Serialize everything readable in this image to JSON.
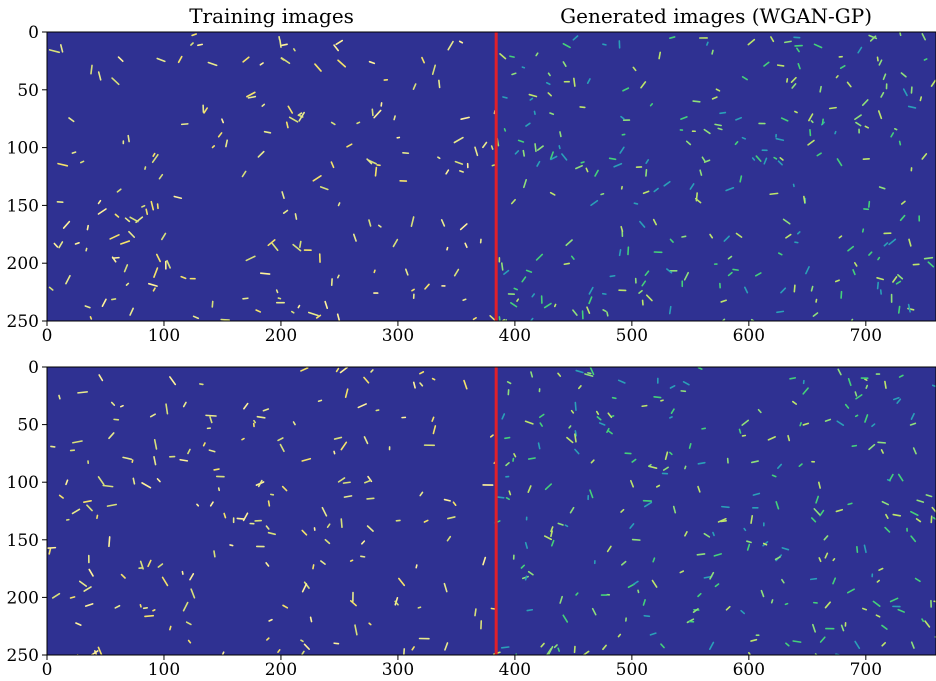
{
  "chart_data": [
    {
      "type": "image",
      "titles": [
        "Training images",
        "Generated images (WGAN-GP)"
      ],
      "background": "#2f3192",
      "vline": {
        "x": 384,
        "color": "#e0202a"
      },
      "xlim": [
        0,
        760
      ],
      "xticks": [
        0,
        100,
        200,
        300,
        400,
        500,
        600,
        700
      ],
      "ylim": [
        250,
        0
      ],
      "yticks": [
        0,
        50,
        100,
        150,
        200,
        250
      ]
    },
    {
      "type": "image",
      "background": "#2f3192",
      "vline": {
        "x": 384,
        "color": "#e0202a"
      },
      "xlim": [
        0,
        760
      ],
      "xticks": [
        0,
        100,
        200,
        300,
        400,
        500,
        600,
        700
      ],
      "ylim": [
        250,
        0
      ],
      "yticks": [
        0,
        50,
        100,
        150,
        200,
        250
      ]
    }
  ]
}
